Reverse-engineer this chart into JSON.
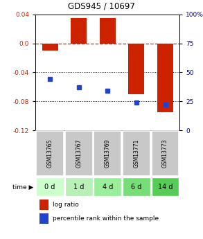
{
  "title": "GDS945 / 10697",
  "samples": [
    "GSM13765",
    "GSM13767",
    "GSM13769",
    "GSM13771",
    "GSM13773"
  ],
  "time_labels": [
    "0 d",
    "1 d",
    "4 d",
    "6 d",
    "14 d"
  ],
  "log_ratio": [
    -0.01,
    0.035,
    0.035,
    -0.07,
    -0.095
  ],
  "percentile": [
    44,
    37,
    34,
    24,
    22
  ],
  "ylim_left": [
    -0.12,
    0.04
  ],
  "ylim_right": [
    0,
    100
  ],
  "yticks_left": [
    0.04,
    0.0,
    -0.04,
    -0.08,
    -0.12
  ],
  "yticks_right": [
    100,
    75,
    50,
    25,
    0
  ],
  "bar_color": "#cc2200",
  "dot_color": "#2244cc",
  "zero_line_color": "#cc2200",
  "sample_bg": "#c8c8c8",
  "time_bg_colors": [
    "#ccffcc",
    "#b8f0b8",
    "#99ee99",
    "#77dd77",
    "#55cc55"
  ],
  "legend_bar_label": "log ratio",
  "legend_dot_label": "percentile rank within the sample",
  "title_fontsize": 8.5,
  "tick_fontsize": 6.5,
  "sample_fontsize": 5.5,
  "time_fontsize": 7.0,
  "legend_fontsize": 6.5
}
